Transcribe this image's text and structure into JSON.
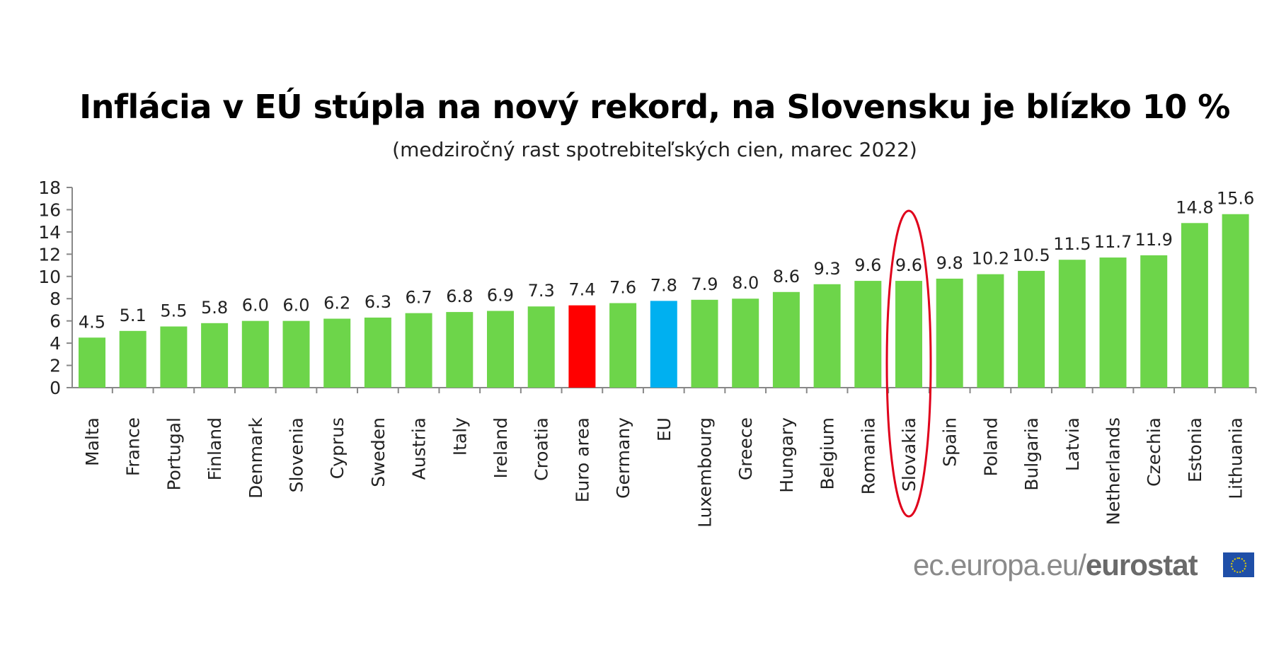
{
  "chart_data": {
    "type": "bar",
    "title": "Inflácia v EÚ stúpla na nový rekord, na Slovensku je blízko 10 %",
    "subtitle": "(medziročný rast spotrebiteľských cien, marec 2022)",
    "xlabel": "",
    "ylabel": "",
    "ylim": [
      0,
      18
    ],
    "yticks": [
      "0",
      "2",
      "4",
      "6",
      "8",
      "10",
      "12",
      "14",
      "16",
      "18"
    ],
    "grid": false,
    "categories": [
      "Malta",
      "France",
      "Portugal",
      "Finland",
      "Denmark",
      "Slovenia",
      "Cyprus",
      "Sweden",
      "Austria",
      "Italy",
      "Ireland",
      "Croatia",
      "Euro area",
      "Germany",
      "EU",
      "Luxembourg",
      "Greece",
      "Hungary",
      "Belgium",
      "Romania",
      "Slovakia",
      "Spain",
      "Poland",
      "Bulgaria",
      "Latvia",
      "Netherlands",
      "Czechia",
      "Estonia",
      "Lithuania"
    ],
    "values": [
      4.5,
      5.1,
      5.5,
      5.8,
      6.0,
      6.0,
      6.2,
      6.3,
      6.7,
      6.8,
      6.9,
      7.3,
      7.4,
      7.6,
      7.8,
      7.9,
      8.0,
      8.6,
      9.3,
      9.6,
      9.6,
      9.8,
      10.2,
      10.5,
      11.5,
      11.7,
      11.9,
      14.8,
      15.6
    ],
    "value_labels": [
      "4.5",
      "5.1",
      "5.5",
      "5.8",
      "6.0",
      "6.0",
      "6.2",
      "6.3",
      "6.7",
      "6.8",
      "6.9",
      "7.3",
      "7.4",
      "7.6",
      "7.8",
      "7.9",
      "8.0",
      "8.6",
      "9.3",
      "9.6",
      "9.6",
      "9.8",
      "10.2",
      "10.5",
      "11.5",
      "11.7",
      "11.9",
      "14.8",
      "15.6"
    ],
    "colors": {
      "default": "#6dd54a",
      "Euro area": "#ff0000",
      "EU": "#00b0f0"
    },
    "highlight": {
      "category": "Slovakia",
      "color": "#e0001b"
    }
  },
  "source": {
    "prefix": "ec.europa.eu/",
    "brand": "eurostat",
    "icon": "eu-flag-icon"
  }
}
